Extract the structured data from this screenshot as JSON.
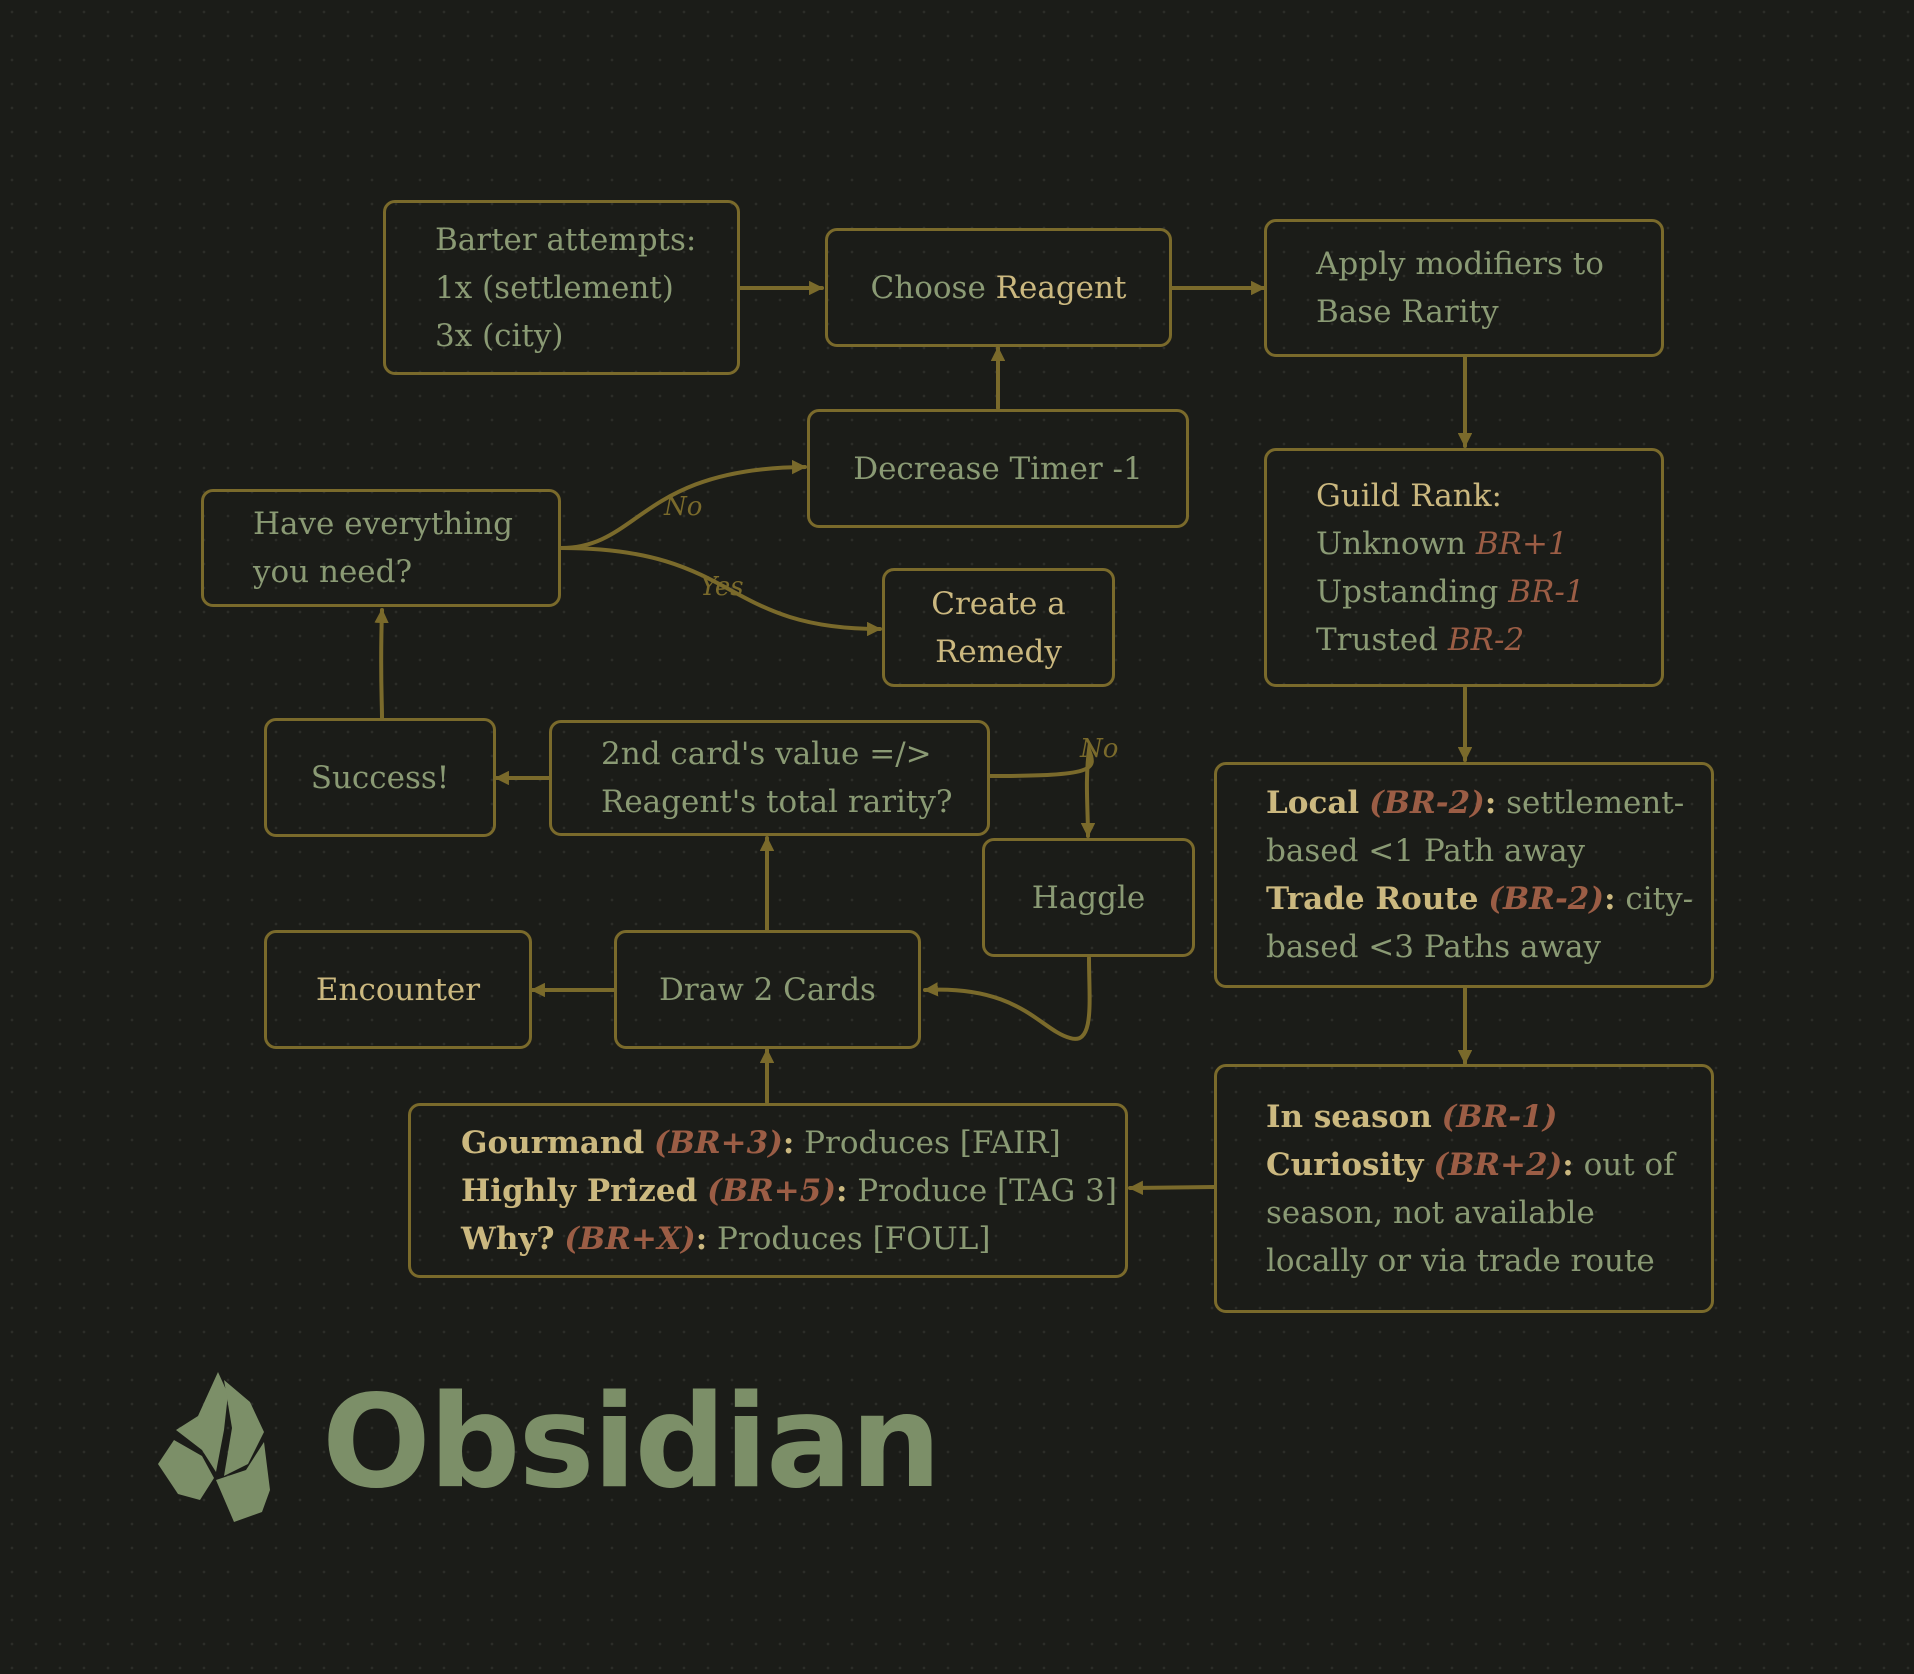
{
  "nodes": {
    "barter": {
      "lines": [
        "Barter attempts:",
        "1x (settlement)",
        "3x (city)"
      ]
    },
    "choose_reagent": {
      "prefix": "Choose ",
      "highlight": "Reagent"
    },
    "apply_modifiers": {
      "lines": [
        "Apply modifiers to",
        "Base Rarity"
      ]
    },
    "decrease_timer": {
      "label": "Decrease Timer -1"
    },
    "have_everything": {
      "lines": [
        "Have everything",
        "you need?"
      ]
    },
    "create_remedy": {
      "lines": [
        "Create a",
        "Remedy"
      ]
    },
    "guild_rank": {
      "title": "Guild Rank:",
      "items": [
        {
          "label": "Unknown ",
          "mod": "BR+1"
        },
        {
          "label": "Upstanding ",
          "mod": "BR-1"
        },
        {
          "label": "Trusted ",
          "mod": "BR-2"
        }
      ]
    },
    "success": {
      "label": "Success!"
    },
    "compare": {
      "lines": [
        "2nd card's value =/>",
        "Reagent's total rarity?"
      ]
    },
    "haggle": {
      "label": "Haggle"
    },
    "local": {
      "l1": {
        "name": "Local",
        "mod": "(BR-2)",
        "colon": ":",
        "text": " settlement-"
      },
      "l2": "based <1 Path away",
      "l3": {
        "name": "Trade Route",
        "mod": "(BR-2)",
        "colon": ":",
        "text": " city-"
      },
      "l4": "based <3 Paths away"
    },
    "encounter": {
      "label": "Encounter"
    },
    "draw_cards": {
      "label": "Draw 2 Cards"
    },
    "season": {
      "l1": {
        "name": "In season",
        "mod": "(BR-1)"
      },
      "l2": {
        "name": "Curiosity",
        "mod": "(BR+2)",
        "colon": ":",
        "text": " out of"
      },
      "l3": "season, not available",
      "l4": "locally or via trade route"
    },
    "gourmand": {
      "rows": [
        {
          "name": "Gourmand",
          "mod": "(BR+3)",
          "colon": ":",
          "text": " Produces [FAIR]"
        },
        {
          "name": "Highly Prized",
          "mod": "(BR+5)",
          "colon": ":",
          "text": " Produce [TAG 3]"
        },
        {
          "name": "Why?",
          "mod": "(BR+X)",
          "colon": ":",
          "text": " Produces [FOUL]"
        }
      ]
    }
  },
  "edge_labels": {
    "no_top": "No",
    "yes": "Yes",
    "no_right": "No"
  },
  "logo": {
    "wordmark": "Obsidian",
    "icon": "obsidian-gem-icon"
  },
  "colors": {
    "background": "#1b1c18",
    "border": "#7a6a2b",
    "text": "#8a9a74",
    "highlight": "#cbb87f",
    "modifier": "#9b5d45",
    "logo": "#7c8f68"
  }
}
